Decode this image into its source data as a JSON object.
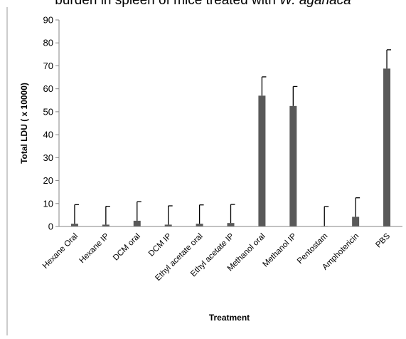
{
  "title_text": "burden in spleen of mice treated with",
  "title_italic": "W. aganaca",
  "chart_data": {
    "type": "bar",
    "title": "burden in spleen of mice treated with W. aganaca",
    "xlabel": "Treatment",
    "ylabel": "Total LDU ( x 10000)",
    "ylim": [
      0,
      90
    ],
    "yticks": [
      0,
      10,
      20,
      30,
      40,
      50,
      60,
      70,
      80,
      90
    ],
    "grid": false,
    "legend": "none",
    "color": "#595959",
    "categories": [
      "Hexane Oral",
      "Hexane IP",
      "DCM oral",
      "DCM IP",
      "Ethyl acetate oral",
      "Ethyl acetate IP",
      "Methanol oral",
      "Methanol IP",
      "Pentostam",
      "Amphotericin",
      "PBS"
    ],
    "values": [
      1.2,
      0.8,
      2.5,
      0.8,
      1.2,
      1.5,
      57,
      52.5,
      0.2,
      4.2,
      68.8
    ],
    "error_upper": [
      9.5,
      8.8,
      10.8,
      9.0,
      9.4,
      9.6,
      65.2,
      61.0,
      8.7,
      12.5,
      77.0
    ]
  }
}
